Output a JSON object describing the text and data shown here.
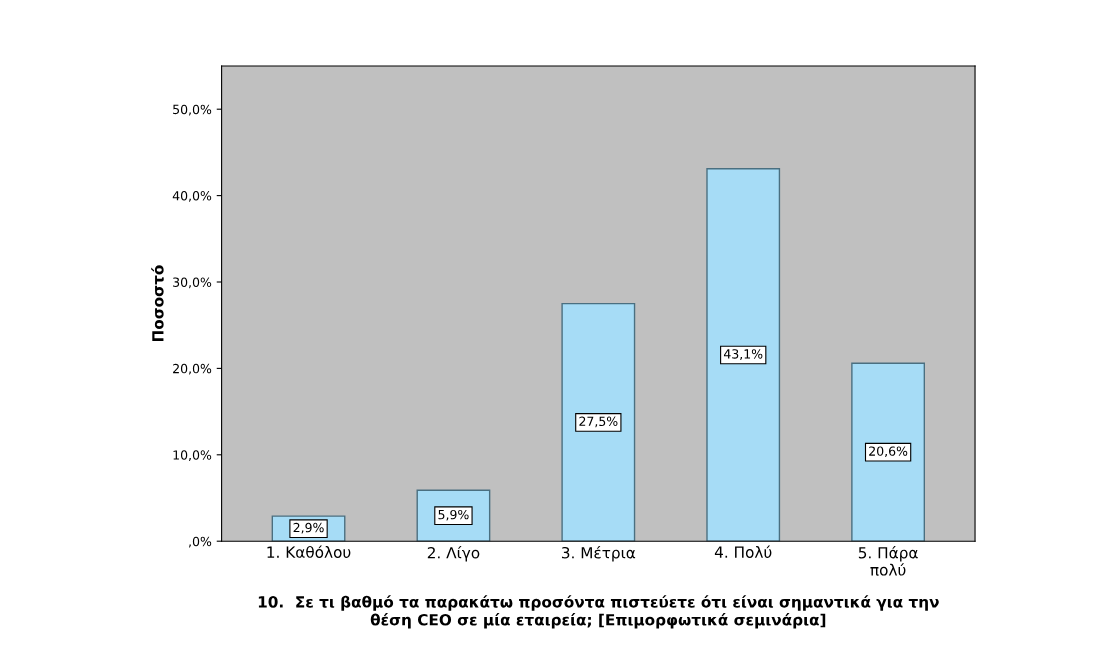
{
  "chart_data": {
    "type": "bar",
    "categories": [
      "1. Καθόλου",
      "2. Λίγο",
      "3. Μέτρια",
      "4. Πολύ",
      "5. Πάρα πολύ"
    ],
    "values": [
      2.9,
      5.9,
      27.5,
      43.1,
      20.6
    ],
    "color": "#a6dcf6",
    "value_labels": [
      "2,9%",
      "5,9%",
      "27,5%",
      "43,1%",
      "20,6%"
    ],
    "ylabel": "Ποσοστό",
    "xlabel": "10.  Σε τι βαθμό τα παρακάτω προσόντα πιστεύετε ότι είναι σημαντικά για την\nθέση CEO σε μία εταιρεία; [Επιμορφωτικά σεμινάρια]",
    "ylim": [
      0,
      55
    ],
    "yticks": [
      {
        "value": 0,
        "label": ",0%"
      },
      {
        "value": 10,
        "label": "10,0%"
      },
      {
        "value": 20,
        "label": "20,0%"
      },
      {
        "value": 30,
        "label": "30,0%"
      },
      {
        "value": 40,
        "label": "40,0%"
      },
      {
        "value": 50,
        "label": "50,0%"
      }
    ],
    "grid": false,
    "legend": false
  }
}
